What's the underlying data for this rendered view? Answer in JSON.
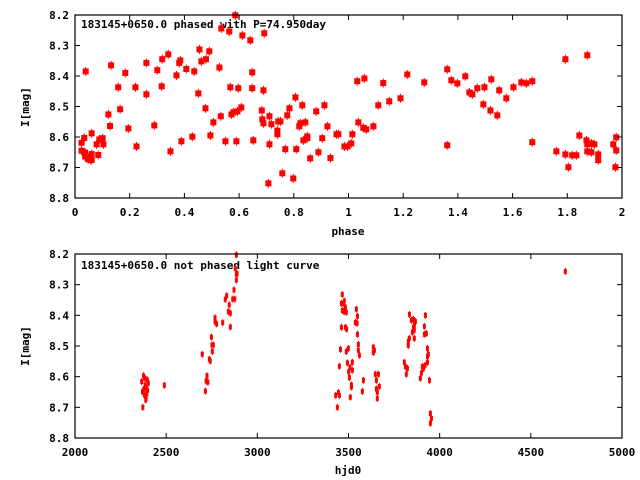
{
  "marker_color": "#ff0000",
  "chart_data": [
    {
      "type": "scatter",
      "title": "183145+0650.0 phased with P=74.950day",
      "xlabel": "phase",
      "ylabel": "I[mag]",
      "xlim": [
        0,
        2
      ],
      "ylim": [
        8.2,
        8.8
      ],
      "y_inverted": true,
      "grid": false,
      "xticks": [
        "0",
        "0.2",
        "0.4",
        "0.6",
        "0.8",
        "1",
        "1.2",
        "1.4",
        "1.6",
        "1.8",
        "2"
      ],
      "xtick_values": [
        0,
        0.2,
        0.4,
        0.6,
        0.8,
        1,
        1.2,
        1.4,
        1.6,
        1.8,
        2
      ],
      "yticks": [
        "8.2",
        "8.3",
        "8.4",
        "8.5",
        "8.6",
        "8.7",
        "8.8"
      ],
      "ytick_values": [
        8.2,
        8.3,
        8.4,
        8.5,
        8.6,
        8.7,
        8.8
      ],
      "points": [
        [
          0.024,
          8.619
        ],
        [
          0.024,
          8.645
        ],
        [
          0.034,
          8.603
        ],
        [
          0.037,
          8.664
        ],
        [
          0.037,
          8.651
        ],
        [
          0.039,
          8.385
        ],
        [
          0.048,
          8.673
        ],
        [
          0.052,
          8.664
        ],
        [
          0.057,
          8.675
        ],
        [
          0.061,
          8.588
        ],
        [
          0.061,
          8.656
        ],
        [
          0.061,
          8.675
        ],
        [
          0.079,
          8.624
        ],
        [
          0.085,
          8.659
        ],
        [
          0.089,
          8.608
        ],
        [
          0.101,
          8.604
        ],
        [
          0.104,
          8.624
        ],
        [
          0.122,
          8.526
        ],
        [
          0.128,
          8.564
        ],
        [
          0.132,
          8.365
        ],
        [
          0.158,
          8.437
        ],
        [
          0.165,
          8.509
        ],
        [
          0.184,
          8.39
        ],
        [
          0.195,
          8.572
        ],
        [
          0.221,
          8.437
        ],
        [
          0.225,
          8.631
        ],
        [
          0.261,
          8.357
        ],
        [
          0.261,
          8.46
        ],
        [
          0.29,
          8.562
        ],
        [
          0.301,
          8.381
        ],
        [
          0.317,
          8.434
        ],
        [
          0.319,
          8.345
        ],
        [
          0.341,
          8.329
        ],
        [
          0.349,
          8.647
        ],
        [
          0.371,
          8.398
        ],
        [
          0.381,
          8.357
        ],
        [
          0.385,
          8.349
        ],
        [
          0.389,
          8.614
        ],
        [
          0.407,
          8.377
        ],
        [
          0.429,
          8.599
        ],
        [
          0.436,
          8.385
        ],
        [
          0.451,
          8.457
        ],
        [
          0.455,
          8.313
        ],
        [
          0.462,
          8.352
        ],
        [
          0.477,
          8.506
        ],
        [
          0.479,
          8.345
        ],
        [
          0.491,
          8.319
        ],
        [
          0.495,
          8.595
        ],
        [
          0.506,
          8.552
        ],
        [
          0.528,
          8.372
        ],
        [
          0.533,
          8.532
        ],
        [
          0.535,
          8.244
        ],
        [
          0.55,
          8.614
        ],
        [
          0.564,
          8.254
        ],
        [
          0.568,
          8.437
        ],
        [
          0.572,
          8.526
        ],
        [
          0.579,
          8.519
        ],
        [
          0.586,
          8.201
        ],
        [
          0.59,
          8.614
        ],
        [
          0.594,
          8.516
        ],
        [
          0.597,
          8.44
        ],
        [
          0.608,
          8.503
        ],
        [
          0.612,
          8.267
        ],
        [
          0.641,
          8.283
        ],
        [
          0.648,
          8.388
        ],
        [
          0.648,
          8.44
        ],
        [
          0.652,
          8.611
        ],
        [
          0.683,
          8.513
        ],
        [
          0.685,
          8.542
        ],
        [
          0.689,
          8.447
        ],
        [
          0.689,
          8.555
        ],
        [
          0.692,
          8.26
        ],
        [
          0.707,
          8.752
        ],
        [
          0.711,
          8.532
        ],
        [
          0.711,
          8.624
        ],
        [
          0.718,
          8.558
        ],
        [
          0.74,
          8.591
        ],
        [
          0.74,
          8.579
        ],
        [
          0.743,
          8.549
        ],
        [
          0.751,
          8.549
        ],
        [
          0.758,
          8.719
        ],
        [
          0.769,
          8.64
        ],
        [
          0.776,
          8.529
        ],
        [
          0.784,
          8.506
        ],
        [
          0.798,
          8.736
        ],
        [
          0.806,
          8.47
        ],
        [
          0.809,
          8.64
        ],
        [
          0.82,
          8.565
        ],
        [
          0.824,
          8.555
        ],
        [
          0.831,
          8.496
        ],
        [
          0.835,
          8.611
        ],
        [
          0.842,
          8.552
        ],
        [
          0.849,
          8.598
        ],
        [
          0.849,
          8.604
        ],
        [
          0.86,
          8.67
        ],
        [
          0.882,
          8.516
        ],
        [
          0.89,
          8.65
        ],
        [
          0.904,
          8.604
        ],
        [
          0.912,
          8.496
        ],
        [
          0.923,
          8.565
        ],
        [
          0.934,
          8.669
        ],
        [
          0.956,
          8.591
        ],
        [
          0.963,
          8.591
        ],
        [
          0.985,
          8.631
        ],
        [
          0.996,
          8.631
        ],
        [
          1.01,
          8.621
        ],
        [
          1.014,
          8.591
        ],
        [
          1.032,
          8.417
        ],
        [
          1.036,
          8.552
        ],
        [
          1.054,
          8.57
        ],
        [
          1.058,
          8.408
        ],
        [
          1.065,
          8.575
        ],
        [
          1.091,
          8.565
        ],
        [
          1.109,
          8.496
        ],
        [
          1.127,
          8.423
        ],
        [
          1.149,
          8.483
        ],
        [
          1.19,
          8.473
        ],
        [
          1.215,
          8.395
        ],
        [
          1.277,
          8.421
        ],
        [
          1.361,
          8.378
        ],
        [
          1.361,
          8.627
        ],
        [
          1.376,
          8.414
        ],
        [
          1.398,
          8.424
        ],
        [
          1.427,
          8.401
        ],
        [
          1.442,
          8.454
        ],
        [
          1.453,
          8.46
        ],
        [
          1.471,
          8.44
        ],
        [
          1.497,
          8.437
        ],
        [
          1.493,
          8.493
        ],
        [
          1.522,
          8.411
        ],
        [
          1.519,
          8.513
        ],
        [
          1.551,
          8.447
        ],
        [
          1.544,
          8.529
        ],
        [
          1.577,
          8.473
        ],
        [
          1.603,
          8.437
        ],
        [
          1.632,
          8.421
        ],
        [
          1.65,
          8.424
        ],
        [
          1.672,
          8.417
        ],
        [
          1.672,
          8.617
        ],
        [
          1.76,
          8.647
        ],
        [
          1.793,
          8.345
        ],
        [
          1.793,
          8.657
        ],
        [
          1.804,
          8.699
        ],
        [
          1.818,
          8.66
        ],
        [
          1.833,
          8.66
        ],
        [
          1.844,
          8.595
        ],
        [
          1.87,
          8.611
        ],
        [
          1.873,
          8.332
        ],
        [
          1.873,
          8.624
        ],
        [
          1.873,
          8.647
        ],
        [
          1.888,
          8.65
        ],
        [
          1.888,
          8.621
        ],
        [
          1.899,
          8.624
        ],
        [
          1.913,
          8.657
        ],
        [
          1.913,
          8.676
        ],
        [
          1.968,
          8.624
        ],
        [
          1.976,
          8.699
        ],
        [
          1.979,
          8.601
        ],
        [
          1.979,
          8.644
        ]
      ]
    },
    {
      "type": "scatter",
      "title": "183145+0650.0 not phased light curve",
      "xlabel": "hjd0",
      "ylabel": "I[mag]",
      "xlim": [
        2000,
        5000
      ],
      "ylim": [
        8.2,
        8.8
      ],
      "y_inverted": true,
      "grid": false,
      "xticks": [
        "2000",
        "2500",
        "3000",
        "3500",
        "4000",
        "4500",
        "5000"
      ],
      "xtick_values": [
        2000,
        2500,
        3000,
        3500,
        4000,
        4500,
        5000
      ],
      "yticks": [
        "8.2",
        "8.3",
        "8.4",
        "8.5",
        "8.6",
        "8.7",
        "8.8"
      ],
      "ytick_values": [
        8.2,
        8.3,
        8.4,
        8.5,
        8.6,
        8.7,
        8.8
      ],
      "points": [
        [
          2366,
          8.616
        ],
        [
          2370,
          8.649
        ],
        [
          2372,
          8.7
        ],
        [
          2376,
          8.597
        ],
        [
          2378,
          8.64
        ],
        [
          2381,
          8.66
        ],
        [
          2383,
          8.605
        ],
        [
          2385,
          8.627
        ],
        [
          2388,
          8.676
        ],
        [
          2390,
          8.67
        ],
        [
          2392,
          8.638
        ],
        [
          2394,
          8.655
        ],
        [
          2396,
          8.61
        ],
        [
          2398,
          8.645
        ],
        [
          2402,
          8.621
        ],
        [
          2490,
          8.628
        ],
        [
          2698,
          8.527
        ],
        [
          2715,
          8.647
        ],
        [
          2719,
          8.614
        ],
        [
          2724,
          8.597
        ],
        [
          2729,
          8.618
        ],
        [
          2737,
          8.543
        ],
        [
          2742,
          8.549
        ],
        [
          2748,
          8.471
        ],
        [
          2751,
          8.497
        ],
        [
          2753,
          8.518
        ],
        [
          2759,
          8.497
        ],
        [
          2768,
          8.421
        ],
        [
          2768,
          8.408
        ],
        [
          2777,
          8.428
        ],
        [
          2810,
          8.424
        ],
        [
          2824,
          8.348
        ],
        [
          2832,
          8.336
        ],
        [
          2841,
          8.388
        ],
        [
          2846,
          8.366
        ],
        [
          2852,
          8.393
        ],
        [
          2852,
          8.438
        ],
        [
          2865,
          8.347
        ],
        [
          2872,
          8.317
        ],
        [
          2876,
          8.347
        ],
        [
          2879,
          8.247
        ],
        [
          2885,
          8.266
        ],
        [
          2885,
          8.285
        ],
        [
          2889,
          8.264
        ],
        [
          2885,
          8.203
        ],
        [
          3430,
          8.661
        ],
        [
          3445,
          8.652
        ],
        [
          3450,
          8.661
        ],
        [
          3439,
          8.7
        ],
        [
          3450,
          8.566
        ],
        [
          3456,
          8.511
        ],
        [
          3461,
          8.439
        ],
        [
          3461,
          8.361
        ],
        [
          3466,
          8.332
        ],
        [
          3466,
          8.384
        ],
        [
          3472,
          8.361
        ],
        [
          3476,
          8.388
        ],
        [
          3477,
          8.353
        ],
        [
          3483,
          8.374
        ],
        [
          3483,
          8.439
        ],
        [
          3488,
          8.39
        ],
        [
          3488,
          8.518
        ],
        [
          3490,
          8.445
        ],
        [
          3494,
          8.555
        ],
        [
          3499,
          8.508
        ],
        [
          3501,
          8.584
        ],
        [
          3505,
          8.603
        ],
        [
          3508,
          8.57
        ],
        [
          3510,
          8.667
        ],
        [
          3516,
          8.627
        ],
        [
          3516,
          8.634
        ],
        [
          3521,
          8.553
        ],
        [
          3521,
          8.579
        ],
        [
          3538,
          8.423
        ],
        [
          3543,
          8.38
        ],
        [
          3547,
          8.426
        ],
        [
          3549,
          8.403
        ],
        [
          3549,
          8.462
        ],
        [
          3554,
          8.495
        ],
        [
          3554,
          8.514
        ],
        [
          3560,
          8.53
        ],
        [
          3576,
          8.648
        ],
        [
          3582,
          8.612
        ],
        [
          3636,
          8.504
        ],
        [
          3636,
          8.521
        ],
        [
          3642,
          8.514
        ],
        [
          3647,
          8.592
        ],
        [
          3653,
          8.612
        ],
        [
          3653,
          8.64
        ],
        [
          3658,
          8.651
        ],
        [
          3658,
          8.671
        ],
        [
          3664,
          8.592
        ],
        [
          3669,
          8.632
        ],
        [
          3806,
          8.553
        ],
        [
          3812,
          8.567
        ],
        [
          3817,
          8.592
        ],
        [
          3823,
          8.573
        ],
        [
          3828,
          8.498
        ],
        [
          3828,
          8.485
        ],
        [
          3834,
          8.475
        ],
        [
          3834,
          8.397
        ],
        [
          3845,
          8.416
        ],
        [
          3850,
          8.455
        ],
        [
          3856,
          8.413
        ],
        [
          3856,
          8.439
        ],
        [
          3861,
          8.432
        ],
        [
          3861,
          8.448
        ],
        [
          3861,
          8.475
        ],
        [
          3867,
          8.42
        ],
        [
          3894,
          8.605
        ],
        [
          3900,
          8.588
        ],
        [
          3905,
          8.567
        ],
        [
          3911,
          8.573
        ],
        [
          3916,
          8.436
        ],
        [
          3916,
          8.462
        ],
        [
          3920,
          8.563
        ],
        [
          3922,
          8.4
        ],
        [
          3927,
          8.459
        ],
        [
          3933,
          8.508
        ],
        [
          3933,
          8.553
        ],
        [
          3933,
          8.534
        ],
        [
          3938,
          8.527
        ],
        [
          3944,
          8.612
        ],
        [
          3949,
          8.72
        ],
        [
          3955,
          8.736
        ],
        [
          3949,
          8.752
        ],
        [
          4689,
          8.257
        ]
      ]
    }
  ]
}
